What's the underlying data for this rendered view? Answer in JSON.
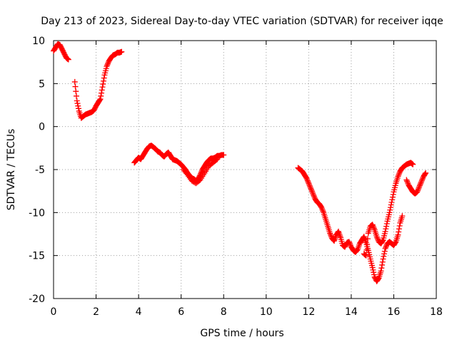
{
  "chart_data": {
    "type": "scatter",
    "title": "Day 213 of 2023, Sidereal Day-to-day VTEC variation (SDTVAR) for receiver iqqe",
    "xlabel": "GPS time / hours",
    "ylabel": "SDTVAR / TECUs",
    "xlim": [
      0,
      18
    ],
    "ylim": [
      -20,
      10
    ],
    "xticks": [
      0,
      2,
      4,
      6,
      8,
      10,
      12,
      14,
      16,
      18
    ],
    "yticks": [
      -20,
      -15,
      -10,
      -5,
      0,
      5,
      10
    ],
    "grid": true,
    "marker": "+",
    "marker_color": "#ff0000",
    "series": [
      {
        "name": "segment-1",
        "x": [
          0.0,
          0.1,
          0.2,
          0.3,
          0.4,
          0.5,
          0.6,
          0.7,
          0.8,
          0.9,
          1.0,
          1.1,
          1.2,
          1.3,
          1.4,
          1.5,
          1.6,
          1.7,
          1.8,
          1.9,
          2.0,
          2.1,
          2.2,
          2.3,
          2.4,
          2.5,
          2.6,
          2.7,
          2.8,
          2.9,
          3.0,
          3.1,
          3.2
        ],
        "y": [
          8.8,
          9.2,
          9.6,
          9.5,
          9.0,
          8.5,
          8.0,
          7.8,
          null,
          null,
          5.2,
          3.0,
          1.8,
          1.0,
          1.2,
          1.4,
          1.5,
          1.6,
          1.7,
          1.9,
          2.4,
          2.8,
          3.2,
          4.6,
          6.0,
          7.0,
          7.6,
          8.0,
          8.3,
          8.4,
          8.6,
          8.6,
          8.7
        ]
      },
      {
        "name": "segment-2",
        "x": [
          3.8,
          3.9,
          4.0,
          4.1,
          4.2,
          4.3,
          4.4,
          4.5,
          4.6,
          4.7,
          4.8,
          4.9,
          5.0,
          5.1,
          5.2,
          5.3,
          5.4,
          5.5,
          5.6,
          5.7,
          5.8,
          5.9,
          6.0,
          6.1,
          6.2,
          6.3,
          6.4,
          6.5,
          6.6,
          6.7,
          6.8,
          6.9,
          7.0,
          7.1,
          7.2,
          7.3,
          7.4,
          7.5,
          7.6,
          7.7,
          7.8,
          7.9,
          8.0
        ],
        "y": [
          -4.2,
          -3.9,
          -3.6,
          -3.8,
          -3.4,
          -3.0,
          -2.6,
          -2.3,
          -2.2,
          -2.4,
          -2.6,
          -2.9,
          -3.0,
          -3.3,
          -3.5,
          -3.2,
          -3.0,
          -3.4,
          -3.8,
          -3.9,
          -4.0,
          -4.2,
          -4.4,
          -4.7,
          -5.0,
          -5.4,
          -5.7,
          -6.0,
          -6.1,
          -6.3,
          -6.1,
          -5.6,
          -5.0,
          -4.6,
          -4.2,
          -3.9,
          -3.7,
          -3.7,
          -3.6,
          -3.4,
          -3.4,
          -3.3,
          -3.3
        ]
      },
      {
        "name": "segment-2-lower",
        "x": [
          6.1,
          6.3,
          6.5,
          6.7,
          6.9,
          7.1,
          7.3,
          7.5,
          7.7
        ],
        "y": [
          -5.0,
          -5.6,
          -6.3,
          -6.6,
          -6.2,
          -5.4,
          -4.6,
          -4.2,
          -3.8
        ]
      },
      {
        "name": "segment-3",
        "x": [
          11.5,
          11.6,
          11.7,
          11.8,
          11.9,
          12.0,
          12.1,
          12.2,
          12.3,
          12.4,
          12.5,
          12.6,
          12.7,
          12.8,
          12.9,
          13.0,
          13.1,
          13.2,
          13.3,
          13.4,
          13.5,
          13.6,
          13.7,
          13.8,
          13.9,
          14.0,
          14.1,
          14.2,
          14.3,
          14.4,
          14.5,
          14.6,
          14.7,
          14.8,
          14.9,
          15.0,
          15.1,
          15.2,
          15.3,
          15.4,
          15.5,
          15.6,
          15.7,
          15.8,
          15.9,
          16.0,
          16.1,
          16.2,
          16.3,
          16.4
        ],
        "y": [
          -4.8,
          -5.0,
          -5.2,
          -5.6,
          -6.0,
          -6.6,
          -7.2,
          -7.8,
          -8.4,
          -8.8,
          -9.0,
          -9.4,
          -10.0,
          -10.8,
          -11.6,
          -12.4,
          -13.0,
          -13.3,
          -12.6,
          -12.2,
          -12.9,
          -13.8,
          -14.0,
          -13.5,
          -13.4,
          -14.0,
          -14.4,
          -14.6,
          -14.3,
          -13.6,
          -13.2,
          -12.8,
          -13.5,
          -14.4,
          -15.4,
          -16.4,
          -17.5,
          -18.0,
          -17.6,
          -16.8,
          -15.4,
          -14.2,
          -13.6,
          -13.4,
          -13.6,
          -13.8,
          -13.4,
          -12.6,
          -11.2,
          -10.4
        ]
      },
      {
        "name": "segment-3-upper",
        "x": [
          14.6,
          14.7,
          14.8,
          14.9,
          15.0,
          15.1,
          15.2,
          15.3,
          15.4,
          15.5,
          15.6,
          15.7,
          15.8,
          15.9,
          16.0,
          16.1,
          16.2,
          16.3,
          16.4,
          16.5,
          16.6,
          16.7,
          16.8,
          16.9
        ],
        "y": [
          -14.8,
          -15.0,
          -12.4,
          -11.6,
          -11.4,
          -12.0,
          -12.8,
          -13.4,
          -13.6,
          -13.2,
          -12.2,
          -11.0,
          -10.0,
          -8.8,
          -7.6,
          -6.6,
          -5.8,
          -5.2,
          -4.8,
          -4.6,
          -4.4,
          -4.3,
          -4.2,
          -4.4
        ]
      },
      {
        "name": "segment-3-tail",
        "x": [
          16.6,
          16.7,
          16.8,
          16.9,
          17.0,
          17.1,
          17.2,
          17.3,
          17.4,
          17.5
        ],
        "y": [
          -6.2,
          -6.8,
          -7.2,
          -7.6,
          -7.8,
          -7.6,
          -7.0,
          -6.4,
          -5.8,
          -5.4
        ]
      }
    ]
  }
}
